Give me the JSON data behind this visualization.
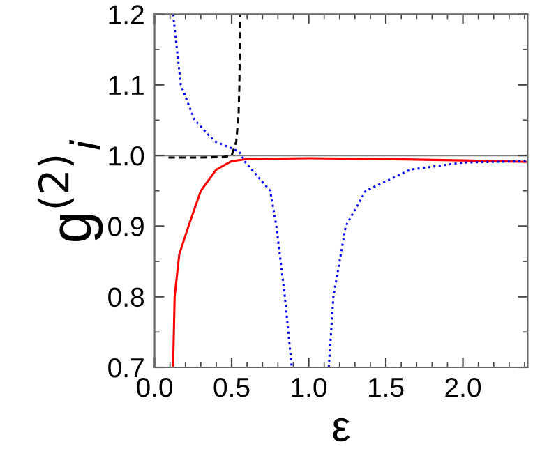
{
  "chart_data": {
    "type": "line",
    "xlabel": "ε",
    "ylabel": "g$^{(2)}$$_{i}$",
    "xlim": [
      0,
      2.42
    ],
    "ylim": [
      0.7,
      1.2
    ],
    "xticks": [
      {
        "value": 0,
        "label": "0.0"
      },
      0.5,
      {
        "value": 1,
        "label": "1.0"
      },
      1.5,
      {
        "value": 2,
        "label": "2.0"
      }
    ],
    "yticks": [
      0.7,
      0.8,
      0.9,
      {
        "value": 1,
        "label": "1.0"
      },
      1.1,
      1.2
    ],
    "grid": false,
    "legend": false,
    "marker": "none",
    "ref_lines": [
      {
        "axis": "y",
        "value": 1.0,
        "color": "#808080",
        "line_style": "solid"
      }
    ],
    "series": [
      {
        "color": "#ff0000",
        "line_style": "solid",
        "x": [
          0.12,
          0.13,
          0.16,
          0.22,
          0.3,
          0.4,
          0.5,
          0.6,
          1.0,
          1.5,
          2.0,
          2.42
        ],
        "values": [
          0.7,
          0.8,
          0.86,
          0.9,
          0.95,
          0.98,
          0.992,
          0.995,
          0.996,
          0.995,
          0.993,
          0.991
        ]
      },
      {
        "color": "#000000",
        "line_style": "dashed",
        "x": [
          0.09,
          0.3,
          0.45,
          0.5,
          0.53,
          0.545,
          0.55,
          0.555
        ],
        "values": [
          0.997,
          0.997,
          0.998,
          1.0,
          1.02,
          1.06,
          1.1,
          1.2
        ]
      },
      {
        "color": "#0000ff",
        "line_style": "dotted",
        "x": [
          0.12,
          0.17,
          0.26,
          0.39,
          0.5,
          0.55,
          0.59,
          0.75,
          0.79,
          0.845,
          0.89,
          1.0,
          1.13,
          1.16,
          1.24,
          1.37,
          1.66,
          2.0,
          2.42
        ],
        "values": [
          1.2,
          1.1,
          1.05,
          1.02,
          1.01,
          1.005,
          0.99,
          0.95,
          0.9,
          0.8,
          0.7,
          null,
          0.7,
          0.8,
          0.9,
          0.95,
          0.98,
          0.99,
          0.992
        ]
      }
    ]
  }
}
